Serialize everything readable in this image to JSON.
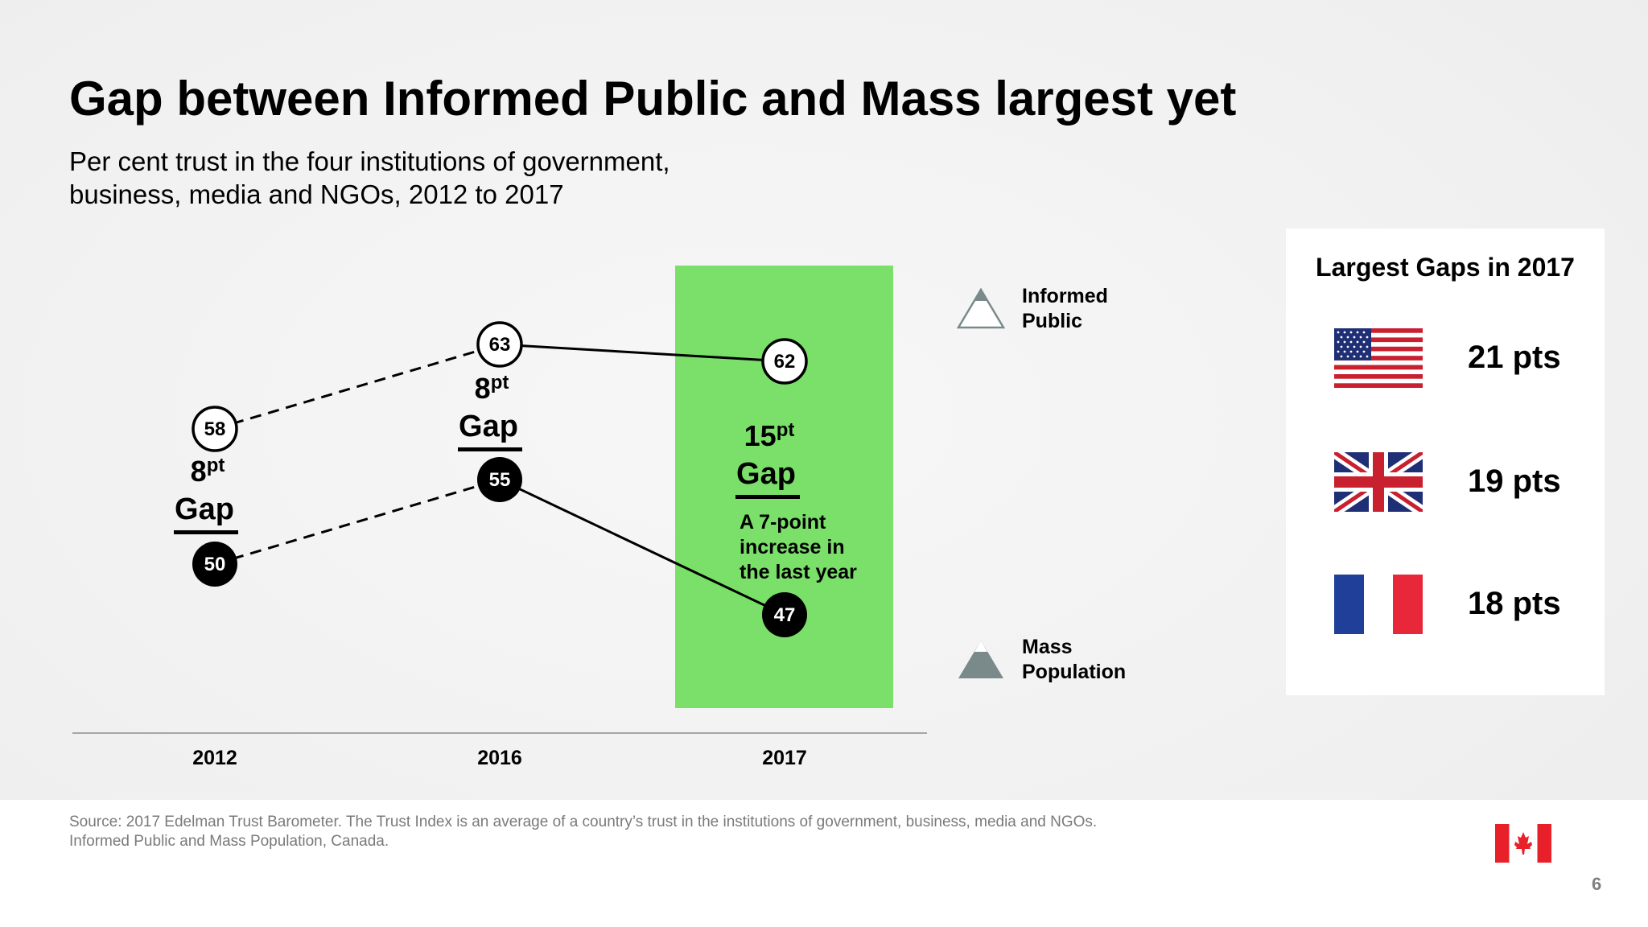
{
  "title": "Gap between Informed Public and Mass largest yet",
  "subtitle": [
    "Per cent trust in the four institutions of government,",
    "business, media and NGOs, 2012 to 2017"
  ],
  "chart_data": {
    "type": "line",
    "x": [
      "2012",
      "2016",
      "2017"
    ],
    "series": [
      {
        "name": "Informed Public",
        "values": [
          58,
          63,
          62
        ]
      },
      {
        "name": "Mass Population",
        "values": [
          50,
          55,
          47
        ]
      }
    ],
    "data_labels": {
      "informed": [
        "58",
        "63",
        "62"
      ],
      "mass": [
        "50",
        "55",
        "47"
      ]
    },
    "gaps": [
      {
        "x": "2012",
        "number": "8",
        "unit": "pt",
        "word": "Gap"
      },
      {
        "x": "2016",
        "number": "8",
        "unit": "pt",
        "word": "Gap"
      },
      {
        "x": "2017",
        "number": "15",
        "unit": "pt",
        "word": "Gap"
      }
    ],
    "annotation": [
      "A 7-point",
      "increase in",
      "the last year"
    ],
    "legend": [
      {
        "line1": "Informed",
        "line2": "Public",
        "marker": "outlined-triangle"
      },
      {
        "line1": "Mass",
        "line2": "Population",
        "marker": "filled-triangle"
      }
    ],
    "legend_position": "right",
    "highlight": {
      "x": "2017",
      "color": "#7ae069"
    },
    "line_style": {
      "2012-2016": "dashed",
      "2016-2017": "solid"
    },
    "grid": false
  },
  "side_panel": {
    "title": "Largest Gaps in 2017",
    "rows": [
      {
        "flag": "usa-flag-icon",
        "value": "21 pts"
      },
      {
        "flag": "uk-flag-icon",
        "value": "19 pts"
      },
      {
        "flag": "france-flag-icon",
        "value": "18 pts"
      }
    ]
  },
  "footer": {
    "source": [
      "Source: 2017 Edelman Trust Barometer. The Trust Index is an average of a country’s trust in the institutions of government, business, media and NGOs.",
      "Informed Public and Mass Population, Canada."
    ],
    "flag": "canada-flag-icon",
    "page_number": "6"
  },
  "colors": {
    "highlight": "#7ae069",
    "accent_red": "#e8202a"
  }
}
